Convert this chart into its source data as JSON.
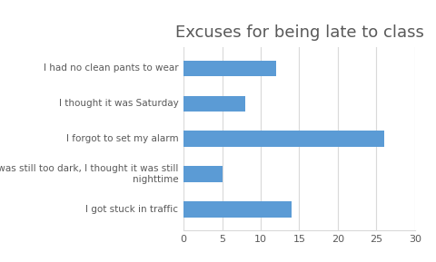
{
  "title": "Excuses for being late to class",
  "categories": [
    "I got stuck in traffic",
    "It was still too dark, I thought it was still\nnighttime",
    "I forgot to set my alarm",
    "I thought it was Saturday",
    "I had no clean pants to wear"
  ],
  "values": [
    14,
    5,
    26,
    8,
    12
  ],
  "bar_color": "#5b9bd5",
  "xlim": [
    0,
    30
  ],
  "xticks": [
    0,
    5,
    10,
    15,
    20,
    25,
    30
  ],
  "title_fontsize": 13,
  "label_fontsize": 7.5,
  "tick_fontsize": 8,
  "background_color": "#ffffff",
  "bar_height": 0.45,
  "grid_color": "#d9d9d9",
  "text_color": "#595959"
}
